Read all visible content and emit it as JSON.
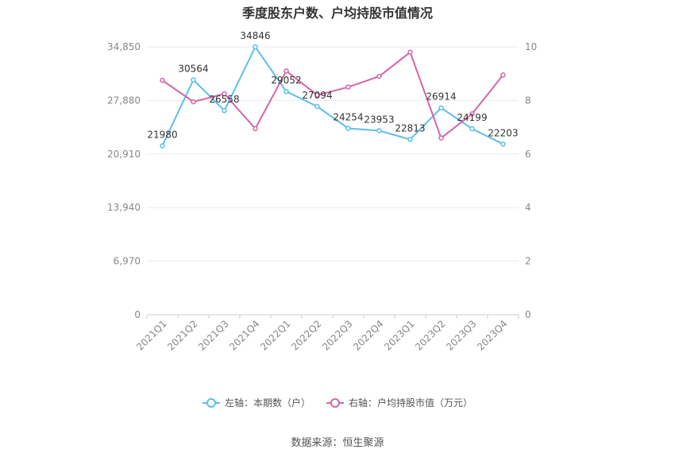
{
  "chart_data": {
    "type": "line",
    "title": "季度股东户数、户均持股市值情况",
    "categories": [
      "2021Q1",
      "2021Q2",
      "2021Q3",
      "2021Q4",
      "2022Q1",
      "2022Q2",
      "2022Q3",
      "2022Q4",
      "2023Q1",
      "2023Q2",
      "2023Q3",
      "2023Q4"
    ],
    "left_axis": {
      "ylim": [
        0,
        34850
      ],
      "ticks": [
        "0",
        "6,970",
        "13,940",
        "20,910",
        "27,880",
        "34,850"
      ]
    },
    "right_axis": {
      "ylim": [
        0,
        10
      ],
      "ticks": [
        "0",
        "2",
        "4",
        "6",
        "8",
        "10"
      ]
    },
    "series": [
      {
        "name": "左轴：本期数（户）",
        "axis": "left",
        "color": "#5bc0eb",
        "values": [
          21980,
          30564,
          26558,
          34846,
          29052,
          27094,
          24254,
          23953,
          22813,
          26914,
          24199,
          22203
        ],
        "labels": [
          "21980",
          "30564",
          "26558",
          "34846",
          "29052",
          "27094",
          "24254",
          "23953",
          "22813",
          "26914",
          "24199",
          "22203"
        ]
      },
      {
        "name": "右轴：户均持股市值（万元）",
        "axis": "right",
        "color": "#d665a8",
        "values": [
          8.75,
          7.95,
          8.25,
          6.95,
          9.1,
          8.2,
          8.5,
          8.9,
          9.8,
          6.6,
          7.5,
          8.95
        ]
      }
    ],
    "grid": true,
    "legend_position": "bottom"
  },
  "source_text": "数据来源：恒生聚源"
}
